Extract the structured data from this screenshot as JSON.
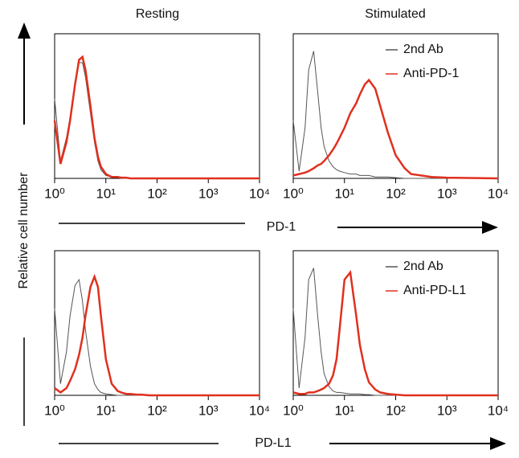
{
  "figure": {
    "column_titles": [
      "Resting",
      "Stimulated"
    ],
    "y_label": "Relative cell number",
    "row_labels": [
      "PD-1",
      "PD-L1"
    ]
  },
  "chart_data": [
    {
      "type": "line",
      "log_x": true,
      "xlim": [
        1,
        10000
      ],
      "ylim": [
        0,
        100
      ],
      "legend": false,
      "xticks": [
        {
          "value": 1,
          "label": "10⁰"
        },
        {
          "value": 10,
          "label": "10¹"
        },
        {
          "value": 100,
          "label": "10²"
        },
        {
          "value": 1000,
          "label": "10³"
        },
        {
          "value": 10000,
          "label": "10⁴"
        }
      ],
      "x": [
        1,
        1.3,
        1.7,
        2,
        2.5,
        3,
        3.5,
        4,
        5,
        6,
        7,
        8,
        10,
        13,
        17,
        20,
        25,
        30,
        40,
        50,
        70,
        100,
        150,
        200,
        500,
        1000,
        10000
      ],
      "series": [
        {
          "color": "#555555",
          "values": [
            55,
            12,
            28,
            42,
            64,
            80,
            80,
            70,
            45,
            25,
            12,
            6,
            2,
            1,
            0.5,
            0.5,
            0,
            0,
            0,
            0,
            0,
            0,
            0,
            0,
            0,
            0,
            0
          ]
        },
        {
          "color": "#e0301e",
          "values": [
            40,
            10,
            25,
            40,
            65,
            82,
            84,
            75,
            50,
            28,
            15,
            8,
            3,
            1,
            1,
            0.5,
            0.5,
            0,
            0,
            0,
            0,
            0,
            0,
            0,
            0,
            0,
            0
          ]
        }
      ]
    },
    {
      "type": "line",
      "log_x": true,
      "xlim": [
        1,
        10000
      ],
      "ylim": [
        0,
        100
      ],
      "legend": true,
      "xticks": [
        {
          "value": 1,
          "label": "10⁰"
        },
        {
          "value": 10,
          "label": "10¹"
        },
        {
          "value": 100,
          "label": "10²"
        },
        {
          "value": 1000,
          "label": "10³"
        },
        {
          "value": 10000,
          "label": "10⁴"
        }
      ],
      "x": [
        1,
        1.3,
        1.7,
        2,
        2.5,
        3,
        3.5,
        4,
        5,
        6,
        7,
        8,
        10,
        13,
        17,
        20,
        25,
        30,
        40,
        50,
        70,
        100,
        150,
        200,
        500,
        1000,
        10000
      ],
      "series": [
        {
          "name": "2nd Ab",
          "color": "#555555",
          "values": [
            40,
            5,
            35,
            75,
            88,
            60,
            35,
            22,
            12,
            8,
            6,
            5,
            4,
            3,
            3,
            2,
            2,
            2,
            1,
            1,
            1,
            0.5,
            0,
            0,
            0,
            0,
            0
          ]
        },
        {
          "name": "Anti-PD-1",
          "color": "#e0301e",
          "values": [
            2,
            3,
            4,
            5,
            7,
            9,
            10,
            12,
            16,
            20,
            24,
            28,
            35,
            45,
            52,
            58,
            65,
            68,
            62,
            50,
            32,
            16,
            7,
            3,
            1,
            0.5,
            0
          ]
        }
      ]
    },
    {
      "type": "line",
      "log_x": true,
      "xlim": [
        1,
        10000
      ],
      "ylim": [
        0,
        100
      ],
      "legend": false,
      "xticks": [
        {
          "value": 1,
          "label": "10⁰"
        },
        {
          "value": 10,
          "label": "10¹"
        },
        {
          "value": 100,
          "label": "10²"
        },
        {
          "value": 1000,
          "label": "10³"
        },
        {
          "value": 10000,
          "label": "10⁴"
        }
      ],
      "x": [
        1,
        1.3,
        1.7,
        2,
        2.5,
        3,
        3.5,
        4,
        5,
        6,
        7,
        8,
        10,
        13,
        17,
        20,
        25,
        30,
        40,
        50,
        70,
        100,
        150,
        200,
        500,
        1000,
        10000
      ],
      "series": [
        {
          "color": "#555555",
          "values": [
            60,
            8,
            30,
            55,
            76,
            80,
            65,
            45,
            20,
            8,
            4,
            2,
            1,
            0.5,
            0,
            0,
            0,
            0,
            0,
            0,
            0,
            0,
            0,
            0,
            0,
            0,
            0
          ]
        },
        {
          "color": "#e0301e",
          "values": [
            5,
            2,
            5,
            10,
            18,
            28,
            40,
            55,
            75,
            82,
            75,
            55,
            25,
            8,
            3,
            2,
            1,
            1,
            0.5,
            0.5,
            0,
            0,
            0,
            0,
            0,
            0,
            0
          ]
        }
      ]
    },
    {
      "type": "line",
      "log_x": true,
      "xlim": [
        1,
        10000
      ],
      "ylim": [
        0,
        100
      ],
      "legend": true,
      "xticks": [
        {
          "value": 1,
          "label": "10⁰"
        },
        {
          "value": 10,
          "label": "10¹"
        },
        {
          "value": 100,
          "label": "10²"
        },
        {
          "value": 1000,
          "label": "10³"
        },
        {
          "value": 10000,
          "label": "10⁴"
        }
      ],
      "x": [
        1,
        1.3,
        1.7,
        2,
        2.5,
        3,
        3.5,
        4,
        5,
        6,
        7,
        8,
        10,
        13,
        17,
        20,
        25,
        30,
        40,
        50,
        70,
        100,
        150,
        200,
        500,
        1000,
        10000
      ],
      "series": [
        {
          "name": "2nd Ab",
          "color": "#555555",
          "values": [
            60,
            5,
            40,
            80,
            88,
            55,
            30,
            15,
            6,
            3,
            2,
            2,
            1.5,
            1,
            1,
            1,
            0.5,
            0.5,
            0,
            0,
            0,
            0,
            0,
            0,
            0,
            0,
            0
          ]
        },
        {
          "name": "Anti-PD-L1",
          "color": "#e0301e",
          "values": [
            2,
            1,
            1,
            2,
            2,
            3,
            4,
            5,
            8,
            14,
            25,
            45,
            80,
            85,
            55,
            35,
            18,
            9,
            4,
            2,
            1,
            0.5,
            0,
            0,
            0,
            0,
            0
          ]
        }
      ]
    }
  ]
}
